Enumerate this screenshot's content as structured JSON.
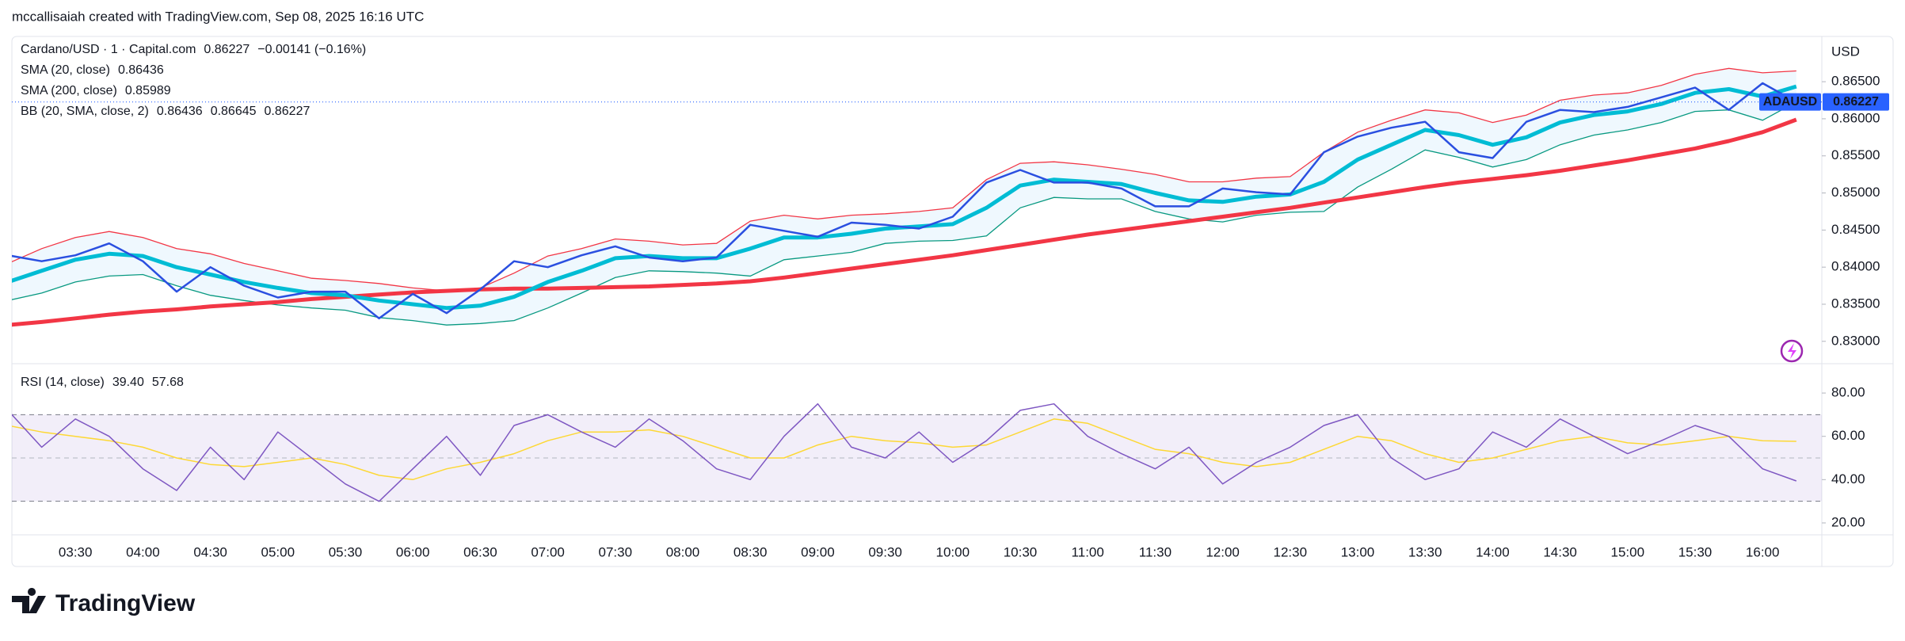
{
  "header": {
    "title": "mccallisaiah created with TradingView.com, Sep 08, 2025 16:16 UTC"
  },
  "logo": {
    "text": "TradingView"
  },
  "chart_data": [
    {
      "type": "line",
      "currency": "USD",
      "categories": [
        null,
        null,
        "03:30",
        null,
        "04:00",
        null,
        "04:30",
        null,
        "05:00",
        null,
        "05:30",
        null,
        "06:00",
        null,
        "06:30",
        null,
        "07:00",
        null,
        "07:30",
        null,
        "08:00",
        null,
        "08:30",
        null,
        "09:00",
        null,
        "09:30",
        null,
        "10:00",
        null,
        "10:30",
        null,
        "11:00",
        null,
        "11:30",
        null,
        "12:00",
        null,
        "12:30",
        null,
        "13:00",
        null,
        "13:30",
        null,
        "14:00",
        null,
        "14:30",
        null,
        "15:00",
        null,
        "15:30",
        null,
        "16:00",
        null
      ],
      "series": [
        {
          "name": "Cardano/USD · 1 · Capital.com",
          "legend_values": [
            "0.86227",
            "−0.00141 (−0.16%)"
          ],
          "color": "#2a4fe0",
          "width": 2.5,
          "values": [
            0.8416,
            0.8408,
            0.8416,
            0.8432,
            0.8408,
            0.8367,
            0.84,
            0.8375,
            0.8359,
            0.8367,
            0.8367,
            0.8331,
            0.8364,
            0.8338,
            0.837,
            0.8408,
            0.84,
            0.8416,
            0.8428,
            0.8413,
            0.8408,
            0.8413,
            0.8457,
            0.8449,
            0.8441,
            0.846,
            0.8457,
            0.8452,
            0.8468,
            0.8514,
            0.8531,
            0.8514,
            0.8514,
            0.8506,
            0.8482,
            0.8482,
            0.8506,
            0.8501,
            0.8498,
            0.8555,
            0.8576,
            0.8588,
            0.8596,
            0.8555,
            0.8547,
            0.8596,
            0.8612,
            0.8609,
            0.8616,
            0.8629,
            0.8642,
            0.8612,
            0.8648,
            0.86227
          ]
        },
        {
          "name": "SMA (20, close)",
          "legend_values": [
            "0.86436"
          ],
          "color": "#00bcd4",
          "width": 5,
          "values": [
            0.838,
            0.8395,
            0.841,
            0.8418,
            0.8415,
            0.84,
            0.839,
            0.838,
            0.8372,
            0.8365,
            0.8362,
            0.8355,
            0.835,
            0.8345,
            0.8348,
            0.836,
            0.838,
            0.8395,
            0.8412,
            0.8415,
            0.8412,
            0.8412,
            0.8425,
            0.844,
            0.844,
            0.8445,
            0.8452,
            0.8455,
            0.8458,
            0.848,
            0.851,
            0.8518,
            0.8515,
            0.8512,
            0.85,
            0.849,
            0.8488,
            0.8495,
            0.8498,
            0.8515,
            0.8545,
            0.8565,
            0.8585,
            0.8578,
            0.8565,
            0.8575,
            0.8595,
            0.8605,
            0.861,
            0.862,
            0.8635,
            0.864,
            0.863,
            0.86436
          ]
        },
        {
          "name": "SMA (200, close)",
          "legend_values": [
            "0.85989"
          ],
          "color": "#f23645",
          "width": 5,
          "values": [
            0.8322,
            0.8326,
            0.8331,
            0.8336,
            0.834,
            0.8343,
            0.8347,
            0.835,
            0.8353,
            0.8357,
            0.836,
            0.8363,
            0.8366,
            0.8368,
            0.837,
            0.8371,
            0.8371,
            0.8372,
            0.8373,
            0.8374,
            0.8376,
            0.8378,
            0.8381,
            0.8386,
            0.8392,
            0.8398,
            0.8404,
            0.841,
            0.8416,
            0.8423,
            0.843,
            0.8437,
            0.8444,
            0.845,
            0.8456,
            0.8462,
            0.8468,
            0.8474,
            0.848,
            0.8487,
            0.8494,
            0.8501,
            0.8508,
            0.8514,
            0.8519,
            0.8524,
            0.853,
            0.8537,
            0.8544,
            0.8552,
            0.856,
            0.857,
            0.8582,
            0.85989
          ]
        }
      ],
      "bb": {
        "name": "BB (20, SMA, close, 2)",
        "legend_values": [
          "0.86436",
          "0.86645",
          "0.86227"
        ],
        "legend_colors": [
          "#2962ff",
          "#f23645",
          "#089981"
        ],
        "upper_color": "#f23645",
        "lower_color": "#089981",
        "fill": "rgba(33,150,243,0.07)",
        "upper": [
          0.8405,
          0.8425,
          0.844,
          0.8448,
          0.844,
          0.8425,
          0.8418,
          0.8405,
          0.8395,
          0.8385,
          0.8382,
          0.8378,
          0.8372,
          0.8368,
          0.8372,
          0.8392,
          0.8415,
          0.8425,
          0.8438,
          0.8435,
          0.843,
          0.8432,
          0.8462,
          0.847,
          0.8465,
          0.847,
          0.8472,
          0.8475,
          0.848,
          0.8518,
          0.854,
          0.8542,
          0.8538,
          0.8532,
          0.8525,
          0.8515,
          0.8515,
          0.852,
          0.8522,
          0.8555,
          0.8582,
          0.8598,
          0.8612,
          0.8608,
          0.8595,
          0.8605,
          0.8625,
          0.8632,
          0.8635,
          0.8645,
          0.866,
          0.8668,
          0.8662,
          0.86645
        ],
        "lower": [
          0.8355,
          0.8365,
          0.838,
          0.8388,
          0.839,
          0.8375,
          0.8362,
          0.8355,
          0.8349,
          0.8345,
          0.8342,
          0.8332,
          0.8328,
          0.8322,
          0.8324,
          0.8328,
          0.8345,
          0.8365,
          0.8386,
          0.8395,
          0.8394,
          0.8392,
          0.8388,
          0.841,
          0.8415,
          0.842,
          0.8432,
          0.8435,
          0.8436,
          0.8442,
          0.848,
          0.8494,
          0.8492,
          0.8492,
          0.8475,
          0.8465,
          0.8461,
          0.847,
          0.8474,
          0.8475,
          0.8508,
          0.8532,
          0.8558,
          0.8548,
          0.8535,
          0.8545,
          0.8565,
          0.8578,
          0.8585,
          0.8595,
          0.861,
          0.8612,
          0.8598,
          0.86227
        ]
      },
      "price_tag": {
        "symbol": "ADAUSD",
        "label": "0.86227",
        "color": "#2962ff"
      },
      "ylim": [
        0.8272,
        0.8711
      ],
      "yticks": [
        {
          "value": 0.83,
          "label": "0.83000"
        },
        {
          "value": 0.835,
          "label": "0.83500"
        },
        {
          "value": 0.84,
          "label": "0.84000"
        },
        {
          "value": 0.845,
          "label": "0.84500"
        },
        {
          "value": 0.85,
          "label": "0.85000"
        },
        {
          "value": 0.855,
          "label": "0.85500"
        },
        {
          "value": 0.86,
          "label": "0.86000"
        },
        {
          "value": 0.865,
          "label": "0.86500"
        }
      ]
    },
    {
      "type": "line",
      "series": [
        {
          "name": "RSI (14, close)",
          "legend_values": [
            "39.40"
          ],
          "color": "#7e57c2",
          "width": 1.5,
          "values": [
            72,
            55,
            68,
            60,
            45,
            35,
            55,
            40,
            62,
            50,
            38,
            30,
            45,
            60,
            42,
            65,
            70,
            62,
            55,
            68,
            58,
            45,
            40,
            60,
            75,
            55,
            50,
            62,
            48,
            58,
            72,
            75,
            60,
            52,
            45,
            55,
            38,
            48,
            55,
            65,
            70,
            50,
            40,
            45,
            62,
            55,
            68,
            60,
            52,
            58,
            65,
            60,
            45,
            39.4
          ]
        },
        {
          "legend_values": [
            "57.68"
          ],
          "color": "#fdd835",
          "width": 1.5,
          "values": [
            65,
            62,
            60,
            58,
            55,
            50,
            47,
            46,
            48,
            50,
            47,
            42,
            40,
            45,
            48,
            52,
            58,
            62,
            62,
            63,
            60,
            55,
            50,
            50,
            56,
            60,
            58,
            57,
            55,
            56,
            62,
            68,
            66,
            60,
            54,
            52,
            48,
            46,
            48,
            54,
            60,
            58,
            52,
            48,
            50,
            54,
            58,
            60,
            57,
            56,
            58,
            60,
            58,
            57.68
          ]
        }
      ],
      "bands": [
        30,
        70
      ],
      "midline": 50,
      "band_fill": "rgba(126,87,194,0.1)",
      "ylim": [
        14.5,
        93.2
      ],
      "yticks": [
        {
          "value": 20,
          "label": "20.00"
        },
        {
          "value": 40,
          "label": "40.00"
        },
        {
          "value": 60,
          "label": "60.00"
        },
        {
          "value": 80,
          "label": "80.00"
        }
      ]
    }
  ]
}
